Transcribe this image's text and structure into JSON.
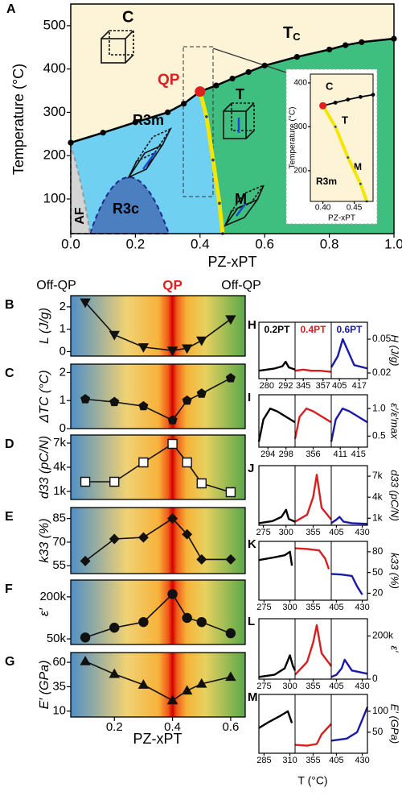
{
  "chart_data": [
    {
      "type": "line",
      "panel_label": "A",
      "xlabel": "PZ-xPT",
      "ylabel": "Temperature (°C)",
      "xlim": [
        0,
        1
      ],
      "ylim": [
        20,
        550
      ],
      "xticks": [
        {
          "value": 0,
          "label": "0.0"
        },
        0.2,
        0.4,
        0.6,
        0.8,
        {
          "value": 1,
          "label": "1.0"
        }
      ],
      "yticks": [
        100,
        200,
        300,
        400,
        500
      ],
      "series": [
        {
          "color": "#000000",
          "x": [
            0,
            0.1,
            0.2,
            0.3,
            0.35,
            0.4,
            0.45,
            0.5,
            0.55,
            0.6,
            0.7,
            0.8,
            0.85,
            0.9,
            1.0
          ],
          "values": [
            230,
            253,
            277,
            300,
            320,
            348,
            362,
            378,
            393,
            408,
            428,
            445,
            455,
            462,
            470
          ]
        },
        {
          "color": "#f5e600",
          "x": [
            0.4,
            0.42,
            0.44,
            0.46,
            0.47
          ],
          "values": [
            348,
            290,
            190,
            90,
            20
          ]
        }
      ],
      "phase_labels": [
        "C",
        "R3m",
        "T",
        "M",
        "R3c",
        "AF"
      ],
      "tc_label": {
        "text": "T",
        "sub": "C"
      },
      "qp_label": "QP",
      "qp_color": "#e02020"
    },
    {
      "type": "line",
      "xlabel": "PZ-xPT",
      "ylabel": "Temperature (°C)",
      "xlim": [
        0.38,
        0.48
      ],
      "ylim": [
        130,
        420
      ],
      "xticks": [
        {
          "value": 0.4,
          "label": "0.40"
        },
        0.45
      ],
      "yticks": [
        200,
        300,
        400
      ],
      "series": [
        {
          "color": "#000000",
          "x": [
            0.4,
            0.42,
            0.44,
            0.46,
            0.48
          ],
          "values": [
            348,
            355,
            362,
            368,
            373
          ]
        },
        {
          "color": "#f5e600",
          "x": [
            0.4,
            0.42,
            0.44,
            0.46,
            0.47
          ],
          "values": [
            348,
            300,
            230,
            170,
            130
          ]
        }
      ],
      "phase_labels": [
        "C",
        "T",
        "M",
        "R3m"
      ]
    },
    {
      "type": "line",
      "panel_label": "B",
      "ylabel": "L (J/g)",
      "header": [
        "Off-QP",
        "QP",
        "Off-QP"
      ],
      "xlim": [
        0.05,
        0.65
      ],
      "ylim": [
        -0.2,
        2.5
      ],
      "yticks": [
        0,
        1,
        2
      ],
      "marker": "triangle-down",
      "x": [
        0.1,
        0.2,
        0.3,
        0.4,
        0.45,
        0.5,
        0.6
      ],
      "values": [
        2.2,
        0.75,
        0.2,
        0.05,
        0.15,
        0.5,
        1.45
      ]
    },
    {
      "type": "line",
      "panel_label": "C",
      "ylabel": "ΔTC (°C)",
      "xlim": [
        0.05,
        0.65
      ],
      "ylim": [
        0,
        2.3
      ],
      "yticks": [
        0,
        1,
        2
      ],
      "marker": "pentagon",
      "x": [
        0.1,
        0.2,
        0.3,
        0.4,
        0.45,
        0.5,
        0.6
      ],
      "values": [
        1.05,
        0.95,
        0.8,
        0.3,
        1.0,
        1.25,
        1.8
      ]
    },
    {
      "type": "line",
      "panel_label": "D",
      "ylabel": "d33 (pC/N)",
      "xlim": [
        0.05,
        0.65
      ],
      "ylim": [
        0,
        8000
      ],
      "yticks": [
        {
          "value": 1000,
          "label": "1k"
        },
        {
          "value": 4000,
          "label": "4k"
        },
        {
          "value": 7000,
          "label": "7k"
        }
      ],
      "marker": "square-open",
      "x": [
        0.1,
        0.2,
        0.3,
        0.4,
        0.45,
        0.5,
        0.6
      ],
      "values": [
        2200,
        2200,
        4600,
        6900,
        4600,
        2000,
        900
      ]
    },
    {
      "type": "line",
      "panel_label": "E",
      "ylabel": "k33 (%)",
      "xlim": [
        0.05,
        0.65
      ],
      "ylim": [
        50,
        92
      ],
      "yticks": [
        55,
        70,
        85
      ],
      "marker": "diamond",
      "x": [
        0.1,
        0.2,
        0.3,
        0.4,
        0.45,
        0.5,
        0.6
      ],
      "values": [
        58,
        72,
        73,
        85,
        75,
        59,
        59
      ]
    },
    {
      "type": "line",
      "panel_label": "F",
      "ylabel": "ε′",
      "xlim": [
        0.05,
        0.65
      ],
      "ylim": [
        30000,
        260000
      ],
      "yticks": [
        {
          "value": 50000,
          "label": "50k"
        },
        {
          "value": 200000,
          "label": "200k"
        }
      ],
      "marker": "circle",
      "x": [
        0.1,
        0.2,
        0.3,
        0.4,
        0.45,
        0.5,
        0.6
      ],
      "values": [
        55000,
        90000,
        110000,
        210000,
        125000,
        110000,
        70000
      ]
    },
    {
      "type": "line",
      "panel_label": "G",
      "ylabel": "E′ (GPa)",
      "xlabel": "PZ-xPT",
      "xlim": [
        0.05,
        0.65
      ],
      "ylim": [
        4,
        70
      ],
      "yticks": [
        10,
        35,
        60
      ],
      "xticks": [
        0.2,
        0.4,
        0.6
      ],
      "marker": "triangle-up",
      "x": [
        0.1,
        0.2,
        0.3,
        0.4,
        0.45,
        0.5,
        0.6
      ],
      "values": [
        61,
        48,
        37,
        21,
        31,
        38,
        45
      ]
    },
    {
      "type": "line",
      "panel_label": "H",
      "ylabel": "H (J/g)",
      "samples": [
        "0.2PT",
        "0.4PT",
        "0.6PT"
      ],
      "ylim": [
        0.015,
        0.065
      ],
      "yticks": [
        0.02,
        0.05
      ],
      "panels": [
        {
          "color": "#000000",
          "xlim": [
            275,
            298
          ],
          "xticks": [
            280,
            292
          ],
          "x": [
            275,
            285,
            290,
            292,
            294,
            298
          ],
          "values": [
            0.022,
            0.024,
            0.026,
            0.03,
            0.025,
            0.023
          ]
        },
        {
          "color": "#d42020",
          "xlim": [
            340,
            362
          ],
          "xticks": [
            345,
            357
          ],
          "x": [
            340,
            345,
            350,
            355,
            362
          ],
          "values": [
            0.022,
            0.023,
            0.022,
            0.022,
            0.021
          ]
        },
        {
          "color": "#1a1aaa",
          "xlim": [
            400,
            422
          ],
          "xticks": [
            405,
            417
          ],
          "x": [
            400,
            404,
            407,
            410,
            414,
            422
          ],
          "values": [
            0.025,
            0.035,
            0.05,
            0.04,
            0.027,
            0.024
          ]
        }
      ]
    },
    {
      "type": "line",
      "panel_label": "I",
      "ylabel": "ε′/ε′max",
      "ylim": [
        0.3,
        1.25
      ],
      "yticks": [
        0.5,
        {
          "value": 1,
          "label": "1.0"
        }
      ],
      "panels": [
        {
          "color": "#000000",
          "xlim": [
            292,
            300
          ],
          "xticks": [
            294,
            298
          ],
          "x": [
            292,
            293,
            294.5,
            296,
            298,
            300
          ],
          "values": [
            0.4,
            0.8,
            1.0,
            0.95,
            0.85,
            0.75
          ]
        },
        {
          "color": "#d42020",
          "xlim": [
            352,
            360
          ],
          "xticks": [
            356
          ],
          "x": [
            352,
            353,
            354.5,
            356,
            358,
            360
          ],
          "values": [
            0.45,
            0.85,
            1.0,
            0.95,
            0.85,
            0.75
          ]
        },
        {
          "color": "#1a1aaa",
          "xlim": [
            409,
            417
          ],
          "xticks": [
            411,
            415
          ],
          "x": [
            409,
            410,
            411.5,
            413,
            415,
            417
          ],
          "values": [
            0.4,
            0.8,
            1.0,
            0.95,
            0.85,
            0.75
          ]
        }
      ]
    },
    {
      "type": "line",
      "panel_label": "J",
      "ylabel": "d33 (pC/N)",
      "ylim": [
        0,
        8500
      ],
      "yticks": [
        {
          "value": 1000,
          "label": "1k"
        },
        {
          "value": 4000,
          "label": "4k"
        },
        {
          "value": 7000,
          "label": "7k"
        }
      ],
      "panels": [
        {
          "color": "#000000",
          "xlim": [
            270,
            310
          ],
          "xticks": [
            275,
            300
          ],
          "x": [
            270,
            285,
            295,
            300,
            303,
            310
          ],
          "values": [
            300,
            600,
            1200,
            2200,
            900,
            500
          ]
        },
        {
          "color": "#d42020",
          "xlim": [
            340,
            370
          ],
          "xticks": [
            355
          ],
          "x": [
            340,
            350,
            355,
            358,
            362,
            370
          ],
          "values": [
            500,
            1500,
            4000,
            7200,
            2500,
            800
          ]
        },
        {
          "color": "#1a1aaa",
          "xlim": [
            400,
            435
          ],
          "xticks": [
            405,
            430
          ],
          "x": [
            400,
            405,
            408,
            412,
            420,
            435
          ],
          "values": [
            300,
            800,
            1200,
            500,
            300,
            200
          ]
        }
      ]
    },
    {
      "type": "line",
      "panel_label": "K",
      "ylabel": "k33 (%)",
      "ylim": [
        10,
        95
      ],
      "yticks": [
        20,
        50,
        80
      ],
      "panels": [
        {
          "color": "#000000",
          "xlim": [
            270,
            305
          ],
          "xticks": [
            275,
            300
          ],
          "x": [
            270,
            285,
            295,
            300,
            302
          ],
          "values": [
            68,
            72,
            75,
            80,
            60
          ]
        },
        {
          "color": "#d42020",
          "xlim": [
            340,
            370
          ],
          "xticks": [
            355
          ],
          "x": [
            340,
            350,
            360,
            365,
            368
          ],
          "values": [
            85,
            84,
            82,
            70,
            55
          ]
        },
        {
          "color": "#1a1aaa",
          "xlim": [
            400,
            435
          ],
          "xticks": [
            405,
            430
          ],
          "x": [
            400,
            410,
            420,
            425,
            430
          ],
          "values": [
            48,
            47,
            45,
            30,
            18
          ]
        }
      ]
    },
    {
      "type": "line",
      "panel_label": "L",
      "ylabel": "ε′",
      "ylim": [
        0,
        280000
      ],
      "yticks": [
        0,
        {
          "value": 200000,
          "label": "200k"
        }
      ],
      "panels": [
        {
          "color": "#000000",
          "xlim": [
            270,
            305
          ],
          "xticks": [
            275,
            300
          ],
          "x": [
            270,
            285,
            295,
            300,
            303,
            305
          ],
          "values": [
            10000,
            20000,
            50000,
            110000,
            60000,
            40000
          ]
        },
        {
          "color": "#d42020",
          "xlim": [
            340,
            370
          ],
          "xticks": [
            355
          ],
          "x": [
            340,
            350,
            355,
            358,
            362,
            370
          ],
          "values": [
            20000,
            80000,
            170000,
            250000,
            120000,
            60000
          ]
        },
        {
          "color": "#1a1aaa",
          "xlim": [
            400,
            435
          ],
          "xticks": [
            405,
            430
          ],
          "x": [
            400,
            405,
            410,
            413,
            420,
            435
          ],
          "values": [
            10000,
            20000,
            50000,
            90000,
            40000,
            25000
          ]
        }
      ]
    },
    {
      "type": "line",
      "panel_label": "M",
      "ylabel": "E′ (GPa)",
      "xlabel": "T (°C)",
      "ylim": [
        0,
        140
      ],
      "yticks": [
        50,
        100
      ],
      "panels": [
        {
          "color": "#000000",
          "xlim": [
            280,
            315
          ],
          "xticks": [
            285,
            310
          ],
          "x": [
            280,
            290,
            300,
            308,
            312
          ],
          "values": [
            60,
            75,
            88,
            100,
            72
          ]
        },
        {
          "color": "#d42020",
          "xlim": [
            340,
            370
          ],
          "xticks": [
            355
          ],
          "x": [
            340,
            350,
            358,
            362,
            370
          ],
          "values": [
            20,
            18,
            22,
            45,
            70
          ]
        },
        {
          "color": "#1a1aaa",
          "xlim": [
            400,
            435
          ],
          "xticks": [
            405,
            430
          ],
          "x": [
            400,
            415,
            425,
            430,
            435
          ],
          "values": [
            30,
            35,
            50,
            80,
            110
          ]
        }
      ]
    }
  ]
}
